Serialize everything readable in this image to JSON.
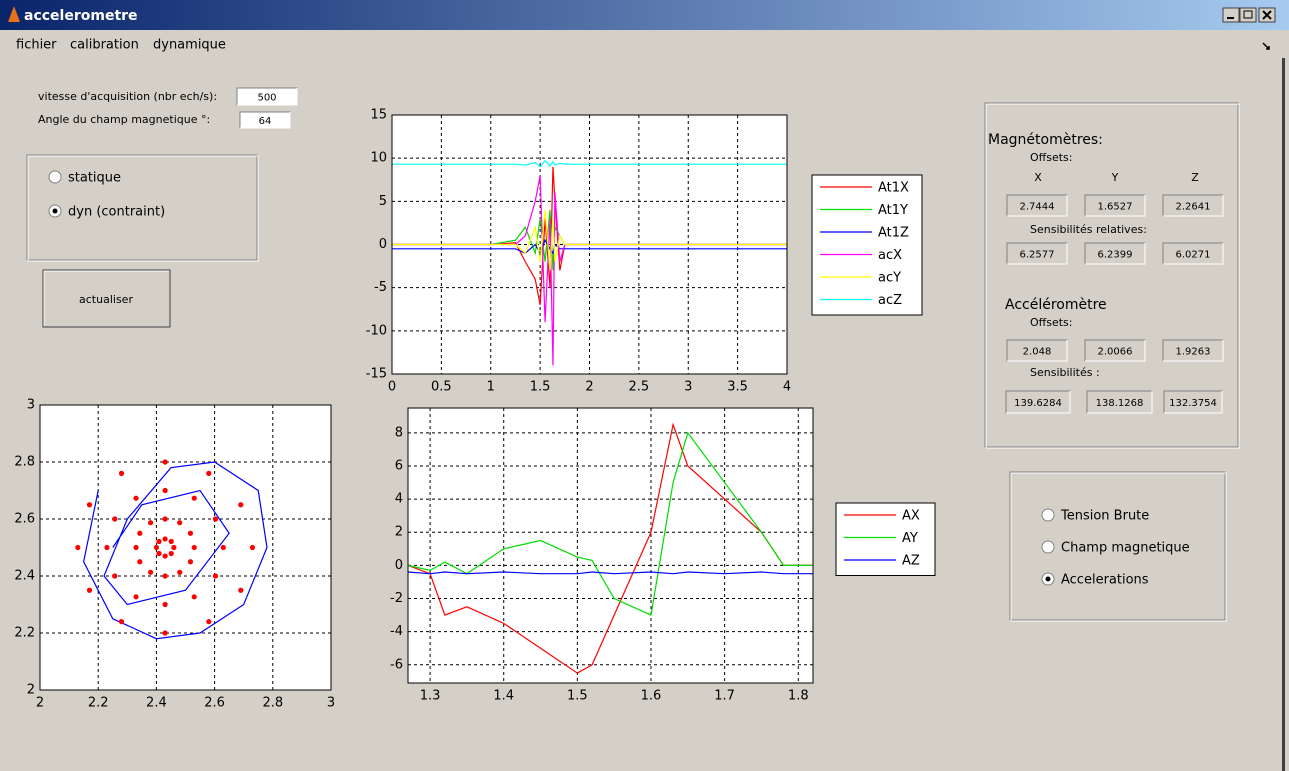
{
  "window": {
    "title": "accelerometre"
  },
  "menu": [
    "fichier",
    "calibration",
    "dynamique"
  ],
  "fields": [
    {
      "label": "vitesse d'acquisition (nbr ech/s):",
      "value": "500"
    },
    {
      "label": "Angle du champ magnetique °:",
      "value": "64"
    }
  ],
  "mode": {
    "options": [
      "statique",
      "dyn (contraint)"
    ],
    "selected": 1
  },
  "button": "actualiser",
  "calibration": {
    "magnetometres": {
      "title": "Magnétomètres:",
      "offsets_label": "Offsets:",
      "axes": [
        "X",
        "Y",
        "Z"
      ],
      "offsets": [
        "2.7444",
        "1.6527",
        "2.2641"
      ],
      "sens_label": "Sensibilités relatives:",
      "sens": [
        "6.2577",
        "6.2399",
        "6.0271"
      ]
    },
    "accelerometre": {
      "title": "Accéléromètre",
      "offsets_label": "Offsets:",
      "offsets": [
        "2.048",
        "2.0066",
        "1.9263"
      ],
      "sens_label": "Sensibilités :",
      "sens": [
        "139.6284",
        "138.1268",
        "132.3754"
      ]
    }
  },
  "display": {
    "options": [
      "Tension Brute",
      "Champ magnetique",
      "Accelerations"
    ],
    "selected": 2
  },
  "chart_data": [
    {
      "type": "line",
      "x": [
        0,
        1,
        1.25,
        1.35,
        1.45,
        1.5,
        1.55,
        1.6,
        1.63,
        1.65,
        1.7,
        1.75,
        2,
        3,
        4
      ],
      "series": [
        {
          "name": "At1X",
          "color": "#ff0000",
          "values": [
            0,
            0,
            0.2,
            -2,
            -4,
            -7,
            3,
            -5,
            9,
            5,
            -3,
            0,
            0,
            0,
            0
          ]
        },
        {
          "name": "At1Y",
          "color": "#00dd00",
          "values": [
            0,
            0,
            0.5,
            2,
            -1,
            3,
            -2,
            4,
            -3,
            2,
            1,
            0,
            0,
            0,
            0
          ]
        },
        {
          "name": "At1Z",
          "color": "#0000ff",
          "values": [
            -0.5,
            -0.5,
            -0.5,
            -1,
            0,
            -1,
            0.5,
            -0.5,
            -1,
            0,
            -0.5,
            -0.5,
            -0.5,
            -0.5,
            -0.5
          ]
        },
        {
          "name": "acX",
          "color": "#ff00ff",
          "values": [
            0,
            0,
            0,
            1,
            5,
            8,
            -9,
            3,
            -14,
            6,
            -2,
            0,
            0,
            0,
            0
          ]
        },
        {
          "name": "acY",
          "color": "#ffff00",
          "values": [
            0,
            0,
            0,
            -1,
            2,
            -2,
            4,
            -3,
            3,
            -2,
            1,
            0,
            0,
            0,
            0
          ]
        },
        {
          "name": "acZ",
          "color": "#00ffff",
          "values": [
            9.3,
            9.3,
            9.3,
            9.2,
            9.5,
            9.0,
            9.7,
            9.1,
            9.6,
            9.2,
            9.4,
            9.3,
            9.3,
            9.3,
            9.3
          ]
        }
      ],
      "xlim": [
        0,
        4
      ],
      "xticks": [
        0,
        0.5,
        1,
        1.5,
        2,
        2.5,
        3,
        3.5,
        4
      ],
      "ylim": [
        -15,
        15
      ],
      "yticks": [
        -15,
        -10,
        -5,
        0,
        5,
        10,
        15
      ],
      "grid": true
    },
    {
      "type": "line",
      "x": [
        1.27,
        1.3,
        1.32,
        1.35,
        1.4,
        1.45,
        1.5,
        1.52,
        1.55,
        1.6,
        1.63,
        1.65,
        1.7,
        1.75,
        1.78,
        1.82
      ],
      "series": [
        {
          "name": "AX",
          "color": "#ff0000",
          "values": [
            0,
            -0.5,
            -3,
            -2.5,
            -3.5,
            -5,
            -6.5,
            -6,
            -3,
            2,
            8.5,
            6,
            4,
            2,
            0,
            0
          ]
        },
        {
          "name": "AY",
          "color": "#00dd00",
          "values": [
            0,
            -0.3,
            0.2,
            -0.5,
            1,
            1.5,
            0.5,
            0.3,
            -2,
            -3,
            5,
            8,
            5,
            2,
            0,
            0
          ]
        },
        {
          "name": "AZ",
          "color": "#0000ff",
          "values": [
            -0.4,
            -0.5,
            -0.4,
            -0.5,
            -0.4,
            -0.5,
            -0.5,
            -0.4,
            -0.5,
            -0.4,
            -0.5,
            -0.4,
            -0.5,
            -0.4,
            -0.5,
            -0.5
          ]
        }
      ],
      "xlim": [
        1.27,
        1.82
      ],
      "xticks": [
        1.3,
        1.4,
        1.5,
        1.6,
        1.7,
        1.8
      ],
      "ylim": [
        -7.1,
        9.5
      ],
      "yticks": [
        -6,
        -4,
        -2,
        0,
        2,
        4,
        6,
        8
      ],
      "grid": true
    },
    {
      "type": "scatter",
      "series": [
        {
          "color": "#0000ff",
          "marker": "line",
          "x": [
            2.2,
            2.15,
            2.25,
            2.4,
            2.55,
            2.7,
            2.78,
            2.75,
            2.6,
            2.45,
            2.3,
            2.22,
            2.3,
            2.5,
            2.65,
            2.55,
            2.35,
            2.25
          ],
          "values": [
            2.7,
            2.45,
            2.25,
            2.18,
            2.2,
            2.3,
            2.5,
            2.7,
            2.8,
            2.78,
            2.6,
            2.4,
            2.3,
            2.35,
            2.55,
            2.7,
            2.65,
            2.5
          ]
        },
        {
          "color": "#ff0000",
          "marker": "dot",
          "x": [
            2.53,
            2.517,
            2.48,
            2.43,
            2.38,
            2.343,
            2.33,
            2.343,
            2.38,
            2.43,
            2.48,
            2.517,
            2.63,
            2.603,
            2.53,
            2.43,
            2.33,
            2.257,
            2.23,
            2.257,
            2.33,
            2.43,
            2.53,
            2.603,
            2.73,
            2.69,
            2.58,
            2.43,
            2.28,
            2.17,
            2.13,
            2.17,
            2.28,
            2.43,
            2.58,
            2.69,
            2.46,
            2.451,
            2.43,
            2.409,
            2.4,
            2.409,
            2.43,
            2.451
          ],
          "values": [
            2.5,
            2.55,
            2.587,
            2.6,
            2.587,
            2.55,
            2.5,
            2.45,
            2.413,
            2.4,
            2.413,
            2.45,
            2.5,
            2.6,
            2.673,
            2.7,
            2.673,
            2.6,
            2.5,
            2.4,
            2.327,
            2.3,
            2.327,
            2.4,
            2.5,
            2.65,
            2.76,
            2.8,
            2.76,
            2.65,
            2.5,
            2.35,
            2.24,
            2.2,
            2.24,
            2.35,
            2.5,
            2.521,
            2.53,
            2.521,
            2.5,
            2.479,
            2.47,
            2.479
          ]
        }
      ],
      "xlim": [
        2,
        3
      ],
      "xticks": [
        2,
        2.2,
        2.4,
        2.6,
        2.8,
        3
      ],
      "ylim": [
        2,
        3
      ],
      "yticks": [
        2,
        2.2,
        2.4,
        2.6,
        2.8,
        3
      ],
      "grid": true
    }
  ]
}
